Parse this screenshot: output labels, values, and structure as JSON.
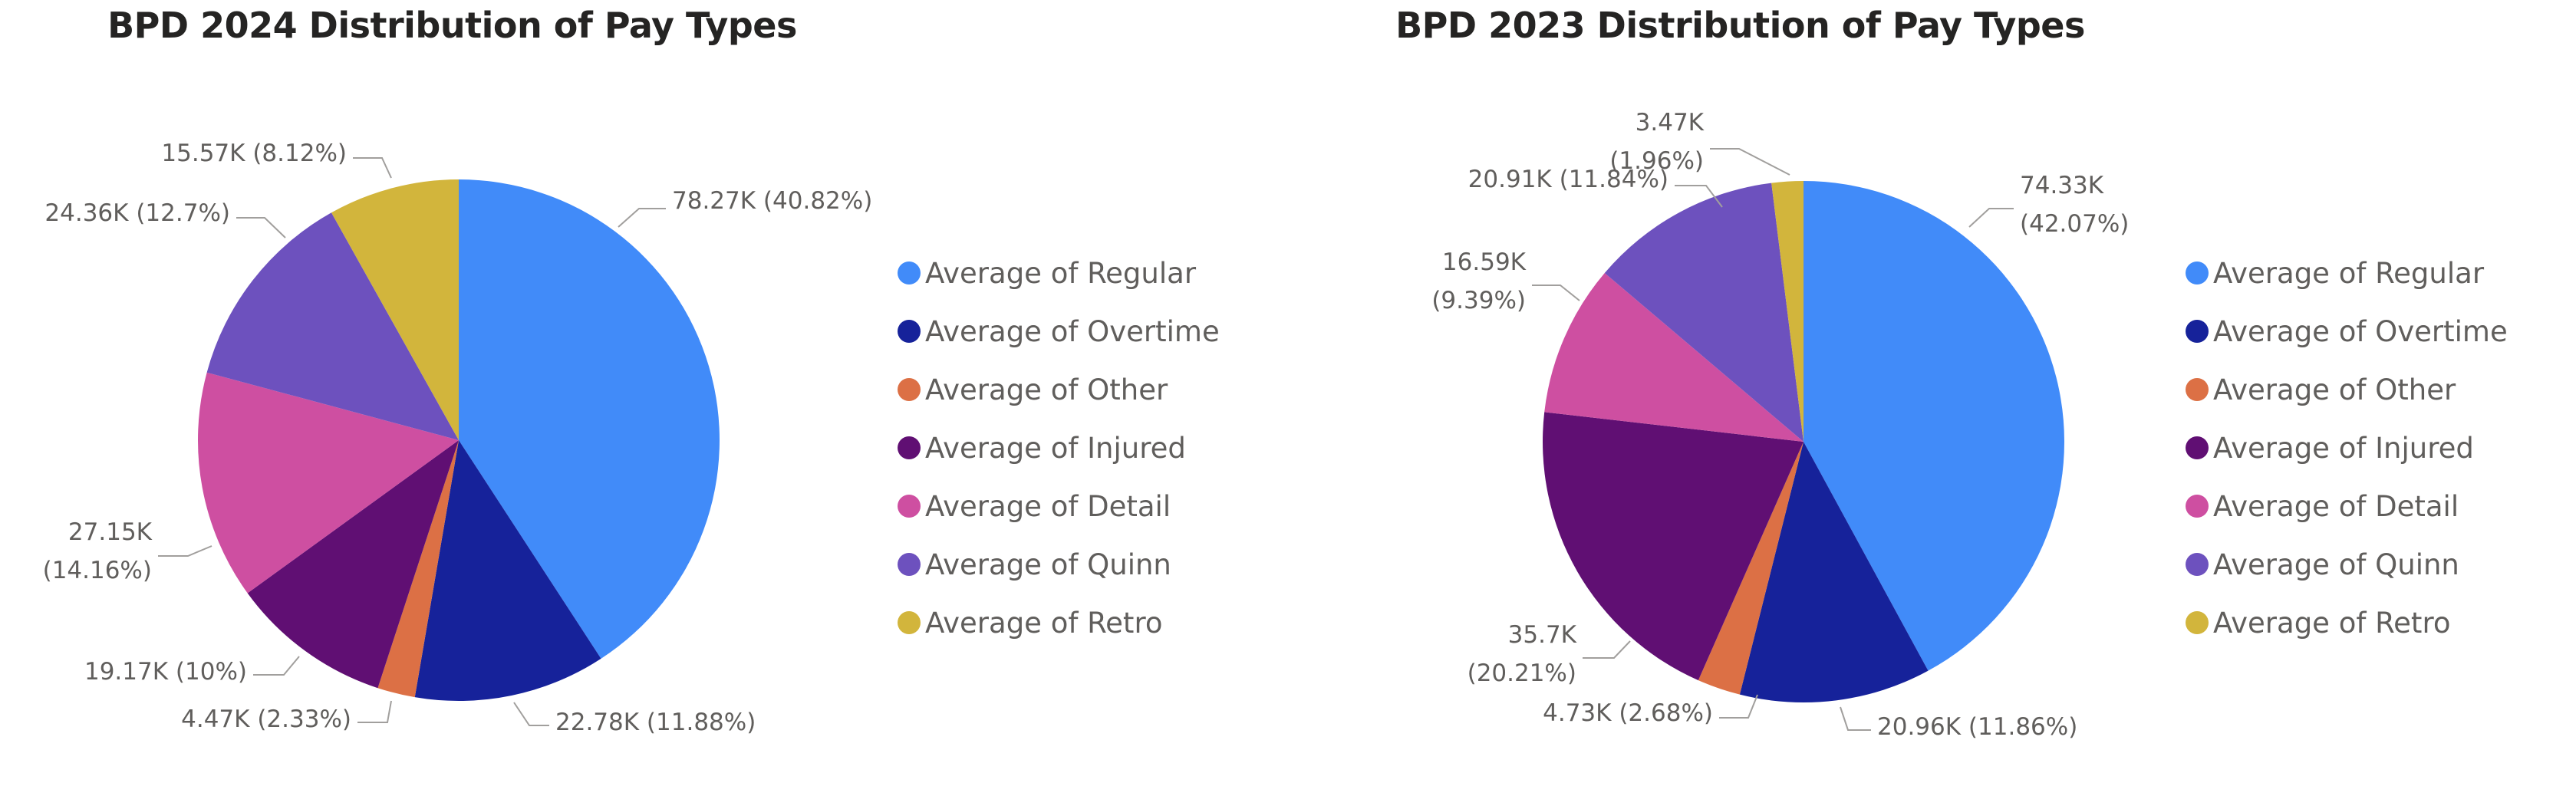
{
  "chart_data": [
    {
      "type": "pie",
      "title": "BPD 2024 Distribution of Pay Types",
      "categories": [
        "Average of Regular",
        "Average of Overtime",
        "Average of Other",
        "Average of Injured",
        "Average of Detail",
        "Average of Quinn",
        "Average of Retro"
      ],
      "values": [
        78.27,
        22.78,
        4.47,
        19.17,
        27.15,
        24.36,
        15.57
      ],
      "units": "K",
      "percentages": [
        40.82,
        11.88,
        2.33,
        10,
        14.16,
        12.7,
        8.12
      ],
      "data_labels": [
        "78.27K (40.82%)",
        "22.78K (11.88%)",
        "4.47K (2.33%)",
        "19.17K (10%)",
        "27.15K (14.16%)",
        "24.36K (12.7%)",
        "15.57K (8.12%)"
      ],
      "colors": [
        "#418bf9",
        "#16229a",
        "#dc7045",
        "#600f73",
        "#ce4fa1",
        "#6d51be",
        "#d2b53c"
      ],
      "legend_position": "right"
    },
    {
      "type": "pie",
      "title": "BPD 2023 Distribution of Pay Types",
      "categories": [
        "Average of Regular",
        "Average of Overtime",
        "Average of Other",
        "Average of Injured",
        "Average of Detail",
        "Average of Quinn",
        "Average of Retro"
      ],
      "values": [
        74.33,
        20.96,
        4.73,
        35.7,
        16.59,
        20.91,
        3.47
      ],
      "units": "K",
      "percentages": [
        42.07,
        11.86,
        2.68,
        20.21,
        9.39,
        11.84,
        1.96
      ],
      "data_labels": [
        "74.33K (42.07%)",
        "20.96K (11.86%)",
        "4.73K (2.68%)",
        "35.7K (20.21%)",
        "16.59K (9.39%)",
        "20.91K (11.84%)",
        "3.47K (1.96%)"
      ],
      "colors": [
        "#418bf9",
        "#16229a",
        "#dc7045",
        "#600f73",
        "#ce4fa1",
        "#6d51be",
        "#d2b53c"
      ],
      "legend_position": "right"
    }
  ]
}
